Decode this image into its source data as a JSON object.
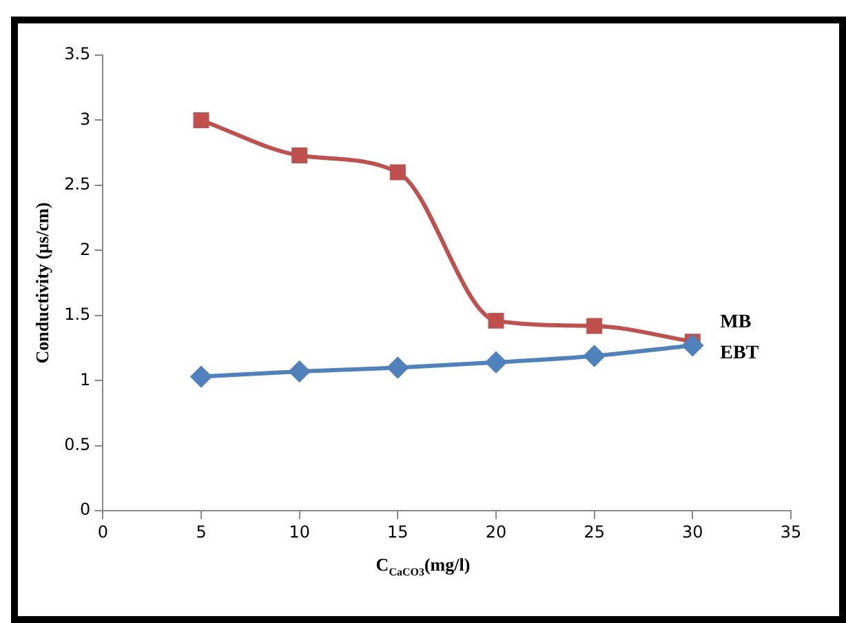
{
  "chart_data": {
    "type": "line",
    "xlabel": "C$_{CaCO3}$(mg/l)",
    "ylabel": "Conductivity (µs/cm)",
    "x": [
      5,
      10,
      15,
      20,
      25,
      30
    ],
    "series": [
      {
        "name": "MB",
        "color": "#c0504d",
        "marker": "square",
        "values": [
          3.0,
          2.73,
          2.6,
          1.46,
          1.42,
          1.3
        ]
      },
      {
        "name": "EBT",
        "color": "#4f81bd",
        "marker": "diamond",
        "values": [
          1.03,
          1.07,
          1.1,
          1.14,
          1.19,
          1.27
        ]
      }
    ],
    "xlim": [
      0,
      35
    ],
    "xticks": [
      0,
      5,
      10,
      15,
      20,
      25,
      30,
      35
    ],
    "ylim": [
      0,
      3.5
    ],
    "yticks": [
      0,
      0.5,
      1,
      1.5,
      2,
      2.5,
      3,
      3.5
    ],
    "grid": false
  }
}
